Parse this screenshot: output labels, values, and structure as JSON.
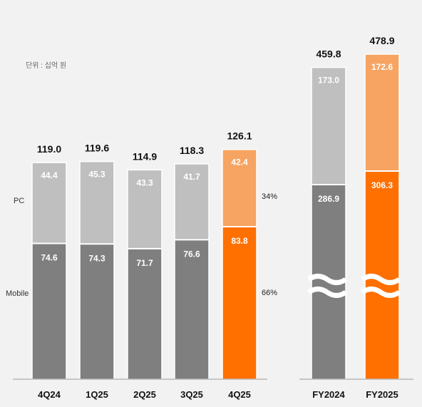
{
  "chart_data": {
    "type": "bar",
    "stacked": true,
    "unit_label": "단위 : 십억 원",
    "categories": [
      "4Q24",
      "1Q25",
      "2Q25",
      "3Q25",
      "4Q25",
      "FY2024",
      "FY2025"
    ],
    "totals": [
      "119.0",
      "119.6",
      "114.9",
      "118.3",
      "126.1",
      "459.8",
      "478.9"
    ],
    "series": [
      {
        "name": "Mobile",
        "values": [
          74.6,
          74.3,
          71.7,
          76.6,
          83.8,
          286.9,
          306.3
        ],
        "labels": [
          "74.6",
          "74.3",
          "71.7",
          "76.6",
          "83.8",
          "286.9",
          "306.3"
        ]
      },
      {
        "name": "PC",
        "values": [
          44.4,
          45.3,
          43.3,
          41.7,
          42.4,
          173.0,
          172.6
        ],
        "labels": [
          "44.4",
          "45.3",
          "43.3",
          "41.7",
          "42.4",
          "173.0",
          "172.6"
        ]
      }
    ],
    "share_labels": {
      "pc": "34%",
      "mobile": "66%"
    },
    "axis_break": [
      "FY2024",
      "FY2025"
    ],
    "colors": {
      "mobile": "#7f7f7f",
      "pc": "#bfbfbf",
      "mobile_highlight": "#ff7000",
      "pc_highlight": "#f7a462"
    },
    "highlight": [
      "4Q25",
      "FY2025"
    ]
  }
}
